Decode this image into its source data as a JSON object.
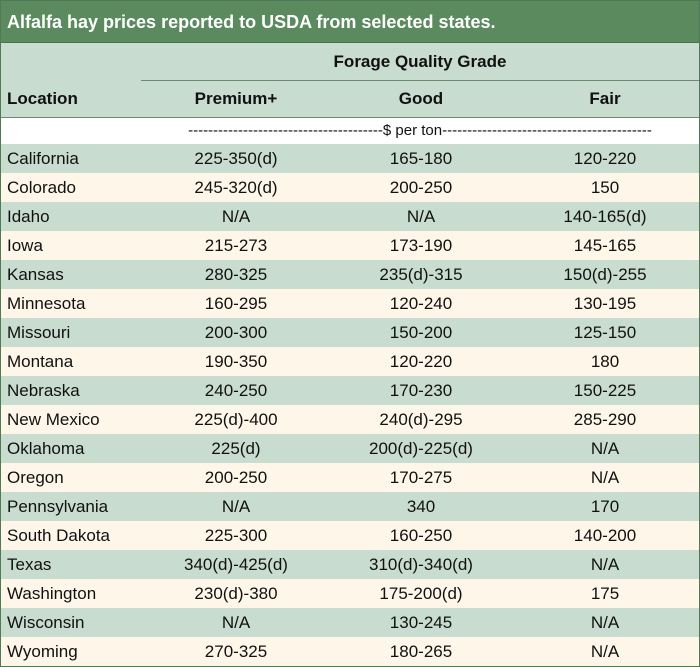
{
  "title": "Alfalfa hay prices reported to USDA from selected states.",
  "header": {
    "group_label": "Forage Quality Grade",
    "location_label": "Location",
    "columns": [
      "Premium+",
      "Good",
      "Fair"
    ]
  },
  "unit_label": "---------------------------------------$ per ton------------------------------------------",
  "rows": [
    {
      "location": "California",
      "premium": "225-350(d)",
      "good": "165-180",
      "fair": "120-220"
    },
    {
      "location": "Colorado",
      "premium": "245-320(d)",
      "good": "200-250",
      "fair": "150"
    },
    {
      "location": "Idaho",
      "premium": "N/A",
      "good": "N/A",
      "fair": "140-165(d)"
    },
    {
      "location": "Iowa",
      "premium": "215-273",
      "good": "173-190",
      "fair": "145-165"
    },
    {
      "location": "Kansas",
      "premium": "280-325",
      "good": "235(d)-315",
      "fair": "150(d)-255"
    },
    {
      "location": "Minnesota",
      "premium": "160-295",
      "good": "120-240",
      "fair": "130-195"
    },
    {
      "location": "Missouri",
      "premium": "200-300",
      "good": "150-200",
      "fair": "125-150"
    },
    {
      "location": "Montana",
      "premium": "190-350",
      "good": "120-220",
      "fair": "180"
    },
    {
      "location": "Nebraska",
      "premium": "240-250",
      "good": "170-230",
      "fair": "150-225"
    },
    {
      "location": "New Mexico",
      "premium": "225(d)-400",
      "good": "240(d)-295",
      "fair": "285-290"
    },
    {
      "location": "Oklahoma",
      "premium": "225(d)",
      "good": "200(d)-225(d)",
      "fair": "N/A"
    },
    {
      "location": "Oregon",
      "premium": "200-250",
      "good": "170-275",
      "fair": "N/A"
    },
    {
      "location": "Pennsylvania",
      "premium": "N/A",
      "good": "340",
      "fair": "170"
    },
    {
      "location": "South Dakota",
      "premium": "225-300",
      "good": "160-250",
      "fair": "140-200"
    },
    {
      "location": "Texas",
      "premium": "340(d)-425(d)",
      "good": "310(d)-340(d)",
      "fair": "N/A"
    },
    {
      "location": "Washington",
      "premium": "230(d)-380",
      "good": "175-200(d)",
      "fair": "175"
    },
    {
      "location": "Wisconsin",
      "premium": "N/A",
      "good": "130-245",
      "fair": "N/A"
    },
    {
      "location": "Wyoming",
      "premium": "270-325",
      "good": "180-265",
      "fair": "N/A"
    }
  ],
  "colors": {
    "title_bg": "#5b8a5f",
    "stripe_green": "#c9dcd0",
    "stripe_cream": "#fdf6e9",
    "rule": "#6d8c72"
  }
}
